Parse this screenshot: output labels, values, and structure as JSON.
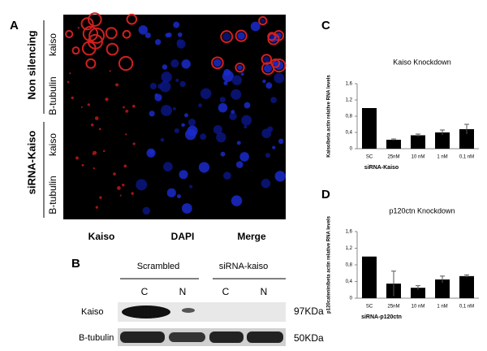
{
  "panel_a": {
    "label": "A",
    "groups": [
      "Non silencing",
      "siRNA-Kaiso"
    ],
    "rows": [
      "kaiso",
      "B-tubulin",
      "kaiso",
      "B-tubulin"
    ],
    "columns": [
      "Kaiso",
      "DAPI",
      "Merge"
    ]
  },
  "panel_b": {
    "label": "B",
    "conditions": [
      "Scrambled",
      "siRNA-kaiso"
    ],
    "lanes": [
      "C",
      "N",
      "C",
      "N"
    ],
    "proteins": [
      "Kaiso",
      "B-tubulin"
    ],
    "sizes": [
      "97KDa",
      "50KDa"
    ]
  },
  "chart_data": [
    {
      "type": "bar",
      "panel": "C",
      "title": "Kaiso Knockdown",
      "ylabel": "Kaiso/beta actin relative RNA levels",
      "xlabel": "siRNA-Kaiso",
      "categories": [
        "SC",
        "25nM",
        "10 nM",
        "1 nM",
        "0,1 nM"
      ],
      "values": [
        1.0,
        0.22,
        0.33,
        0.4,
        0.48
      ],
      "errors": [
        0,
        0.02,
        0.03,
        0.06,
        0.12
      ],
      "color": "#000000",
      "ylim": [
        0,
        1.6
      ],
      "yticks": [
        0,
        {
          "value": 0.4,
          "label": "0,4"
        },
        {
          "value": 0.8,
          "label": "0,8"
        },
        {
          "value": 1.2,
          "label": "1,2"
        },
        {
          "value": 1.6,
          "label": "1,6"
        }
      ]
    },
    {
      "type": "bar",
      "panel": "D",
      "title": "p120ctn Knockdown",
      "ylabel": "p120catenin/beta actin relative RNA levels",
      "xlabel": "siRNA-p120ctn",
      "categories": [
        "SC",
        "25nM",
        "10 nM",
        "1 nM",
        "0,1 nM"
      ],
      "values": [
        1.0,
        0.35,
        0.25,
        0.45,
        0.53
      ],
      "errors": [
        0,
        0.3,
        0.05,
        0.08,
        0.03
      ],
      "color": "#000000",
      "ylim": [
        0,
        1.6
      ],
      "yticks": [
        0,
        {
          "value": 0.4,
          "label": "0,4"
        },
        {
          "value": 0.8,
          "label": "0,8"
        },
        {
          "value": 1.2,
          "label": "1,2"
        },
        {
          "value": 1.6,
          "label": "1,6"
        }
      ]
    }
  ]
}
